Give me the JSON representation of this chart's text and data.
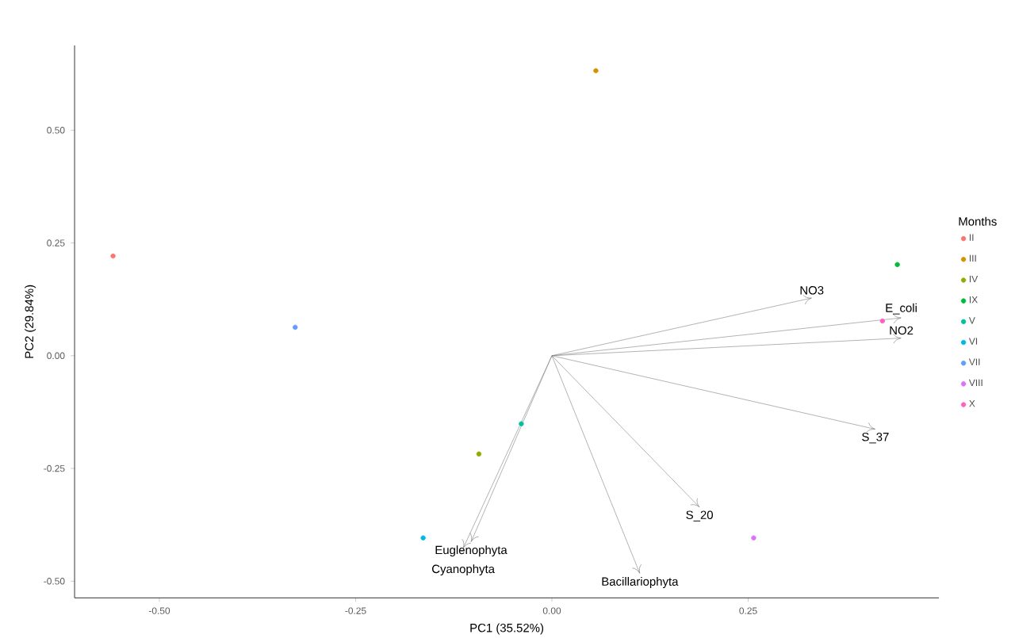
{
  "chart_data": {
    "type": "scatter",
    "xlabel": "PC1 (35.52%)",
    "ylabel": "PC2 (29.84%)",
    "legend_title": "Months",
    "legend": "right",
    "marker": "circle",
    "grid": false,
    "xlim": [
      -0.608,
      0.493
    ],
    "ylim": [
      -0.537,
      0.688
    ],
    "xticks": [
      {
        "value": -0.5,
        "label": "-0.50"
      },
      {
        "value": -0.25,
        "label": "-0.25"
      },
      {
        "value": 0,
        "label": "0.00"
      },
      {
        "value": 0.25,
        "label": "0.25"
      }
    ],
    "yticks": [
      {
        "value": -0.5,
        "label": "-0.50"
      },
      {
        "value": -0.25,
        "label": "-0.25"
      },
      {
        "value": 0,
        "label": "0.00"
      },
      {
        "value": 0.25,
        "label": "0.25"
      },
      {
        "value": 0.5,
        "label": "0.50"
      }
    ],
    "series": [
      {
        "name": "II",
        "color": "#f8766d",
        "x": [
          -0.559
        ],
        "values": [
          0.221
        ]
      },
      {
        "name": "III",
        "color": "#d39200",
        "x": [
          0.056
        ],
        "values": [
          0.632
        ]
      },
      {
        "name": "IV",
        "color": "#93aa00",
        "x": [
          -0.093
        ],
        "values": [
          -0.218
        ]
      },
      {
        "name": "IX",
        "color": "#00ba38",
        "x": [
          0.44
        ],
        "values": [
          0.202
        ]
      },
      {
        "name": "V",
        "color": "#00c19f",
        "x": [
          -0.039
        ],
        "values": [
          -0.151
        ]
      },
      {
        "name": "VI",
        "color": "#00b9e3",
        "x": [
          -0.164
        ],
        "values": [
          -0.404
        ]
      },
      {
        "name": "VII",
        "color": "#619cff",
        "x": [
          -0.327
        ],
        "values": [
          0.063
        ]
      },
      {
        "name": "VIII",
        "color": "#db72fb",
        "x": [
          0.257
        ],
        "values": [
          -0.404
        ]
      },
      {
        "name": "X",
        "color": "#ff61c3",
        "x": [
          0.421
        ],
        "values": [
          0.077
        ]
      },
      {
        "name": "NO3",
        "type": "line",
        "marker": "none",
        "color": "#808080",
        "x": [
          0,
          0.331
        ],
        "values": [
          0,
          0.128
        ]
      },
      {
        "name": "E_coli",
        "type": "line",
        "marker": "none",
        "color": "#808080",
        "x": [
          0,
          0.445
        ],
        "values": [
          0,
          0.084
        ]
      },
      {
        "name": "NO2",
        "type": "line",
        "marker": "none",
        "color": "#808080",
        "x": [
          0,
          0.445
        ],
        "values": [
          0,
          0.039
        ]
      },
      {
        "name": "S_37",
        "type": "line",
        "marker": "none",
        "color": "#808080",
        "x": [
          0,
          0.412
        ],
        "values": [
          0,
          -0.163
        ]
      },
      {
        "name": "S_20",
        "type": "line",
        "marker": "none",
        "color": "#808080",
        "x": [
          0,
          0.188
        ],
        "values": [
          0,
          -0.336
        ]
      },
      {
        "name": "Bacillariophyta",
        "type": "line",
        "marker": "none",
        "color": "#808080",
        "x": [
          0,
          0.112
        ],
        "values": [
          0,
          -0.483
        ]
      },
      {
        "name": "Euglenophyta",
        "type": "line",
        "marker": "none",
        "color": "#808080",
        "x": [
          0,
          -0.103
        ],
        "values": [
          0,
          -0.413
        ]
      },
      {
        "name": "Cyanophyta",
        "type": "line",
        "marker": "none",
        "color": "#808080",
        "x": [
          0,
          -0.113
        ],
        "values": [
          0,
          -0.427
        ]
      }
    ]
  }
}
